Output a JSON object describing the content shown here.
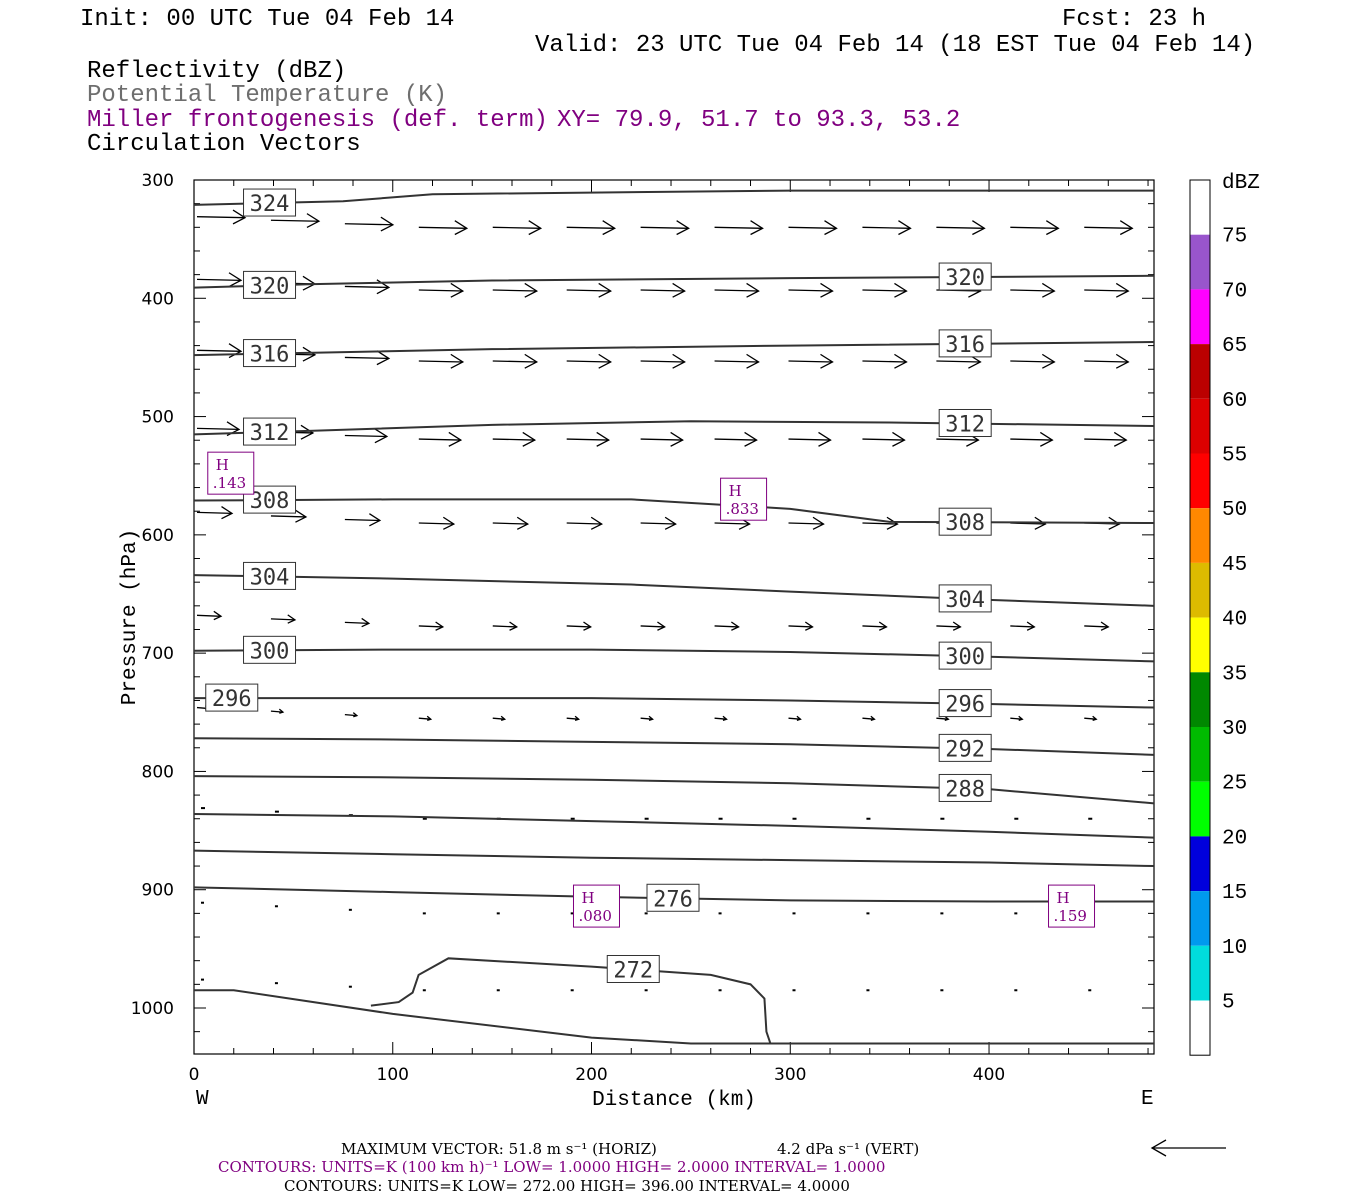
{
  "header": {
    "init": "Init: 00 UTC Tue 04 Feb 14",
    "fcst": "Fcst:   23 h",
    "valid": "Valid: 23 UTC Tue 04 Feb 14 (18 EST Tue 04 Feb 14)",
    "field1": "Reflectivity (dBZ)",
    "field2": "Potential Temperature (K)",
    "field3": "Miller frontogenesis (def. term)",
    "xy": "XY=  79.9, 51.7 to  93.3, 53.2",
    "field4": "Circulation Vectors"
  },
  "colors": {
    "purple": "#800080",
    "grey_text": "#6e6e6e",
    "contour": "#333333"
  },
  "chart_data": {
    "type": "line",
    "xlabel": "Distance (km)",
    "ylabel": "Pressure (hPa)",
    "x_ticks": [
      "0",
      "100",
      "200",
      "300",
      "400"
    ],
    "y_ticks": [
      "300",
      "400",
      "500",
      "600",
      "700",
      "800",
      "900",
      "1000"
    ],
    "xlim": [
      0,
      483
    ],
    "ylim": [
      1030,
      300
    ],
    "west_label": "W",
    "east_label": "E",
    "theta_contours": [
      {
        "label": "324",
        "x": [
          0,
          75,
          120,
          300,
          483
        ],
        "p": [
          321,
          318,
          312,
          309,
          309
        ]
      },
      {
        "label": "320",
        "x": [
          0,
          60,
          150,
          300,
          483
        ],
        "p": [
          391,
          388,
          385,
          383,
          381
        ]
      },
      {
        "label": "316",
        "x": [
          0,
          60,
          150,
          300,
          483
        ],
        "p": [
          448,
          446,
          443,
          440,
          437
        ]
      },
      {
        "label": "312",
        "x": [
          0,
          60,
          150,
          250,
          350,
          483
        ],
        "p": [
          515,
          512,
          507,
          504,
          505,
          508
        ]
      },
      {
        "label": "308",
        "x": [
          0,
          100,
          220,
          300,
          350,
          483
        ],
        "p": [
          571,
          570,
          570,
          578,
          589,
          590
        ]
      },
      {
        "label": "304",
        "x": [
          0,
          100,
          220,
          300,
          400,
          483
        ],
        "p": [
          634,
          637,
          642,
          648,
          655,
          660
        ]
      },
      {
        "label": "300",
        "x": [
          0,
          100,
          200,
          300,
          400,
          483
        ],
        "p": [
          698,
          697,
          697,
          699,
          703,
          707
        ]
      },
      {
        "label": "296",
        "x": [
          0,
          100,
          200,
          300,
          400,
          483
        ],
        "p": [
          738,
          738,
          738,
          740,
          743,
          746
        ]
      },
      {
        "label": "292",
        "x": [
          0,
          100,
          200,
          300,
          400,
          483
        ],
        "p": [
          772,
          773,
          775,
          777,
          781,
          786
        ]
      },
      {
        "label": "288",
        "x": [
          0,
          100,
          200,
          300,
          400,
          483
        ],
        "p": [
          804,
          805,
          807,
          810,
          815,
          827
        ]
      },
      {
        "label": "",
        "x": [
          0,
          100,
          200,
          300,
          400,
          483
        ],
        "p": [
          836,
          838,
          842,
          846,
          851,
          856
        ]
      },
      {
        "label": "",
        "x": [
          0,
          100,
          200,
          300,
          400,
          483
        ],
        "p": [
          867,
          870,
          873,
          875,
          877,
          880
        ]
      },
      {
        "label": "276",
        "x": [
          0,
          100,
          200,
          300,
          400,
          483
        ],
        "p": [
          898,
          902,
          906,
          909,
          910,
          910
        ]
      },
      {
        "label": "272",
        "x": [
          89,
          103,
          110,
          113,
          128,
          200,
          260,
          280,
          287,
          288,
          290
        ],
        "p": [
          998,
          995,
          987,
          972,
          958,
          965,
          972,
          980,
          992,
          1020,
          1030
        ]
      }
    ],
    "ground": {
      "x": [
        0,
        20,
        100,
        200,
        250,
        483
      ],
      "p": [
        985,
        985,
        1005,
        1025,
        1030,
        1030
      ]
    },
    "frontogenesis_maxima": [
      {
        "label": "H",
        "value": ".143",
        "x": 18,
        "p": 547
      },
      {
        "label": "H",
        "value": ".833",
        "x": 276,
        "p": 569
      },
      {
        "label": "H",
        "value": ".080",
        "x": 202,
        "p": 913
      },
      {
        "label": "H",
        "value": ".159",
        "x": 441,
        "p": 913
      }
    ],
    "vector_rows": [
      {
        "p": 340,
        "len": 48
      },
      {
        "p": 393,
        "len": 44
      },
      {
        "p": 453,
        "len": 44
      },
      {
        "p": 519,
        "len": 42
      },
      {
        "p": 590,
        "len": 35
      },
      {
        "p": 677,
        "len": 24
      },
      {
        "p": 755,
        "len": 12
      },
      {
        "p": 840,
        "len": 3
      },
      {
        "p": 920,
        "len": 2
      },
      {
        "p": 985,
        "len": 2
      }
    ]
  },
  "colorbar": {
    "title": "dBZ",
    "labels": [
      "75",
      "70",
      "65",
      "60",
      "55",
      "50",
      "45",
      "40",
      "35",
      "30",
      "25",
      "20",
      "15",
      "10",
      "5"
    ],
    "colors": [
      "#ffffff",
      "#9955cc",
      "#ff00ff",
      "#bb0000",
      "#dd0000",
      "#ff0000",
      "#ff8800",
      "#ddbb00",
      "#ffff00",
      "#008800",
      "#00bb00",
      "#00ff00",
      "#0000dd",
      "#0099ee",
      "#00dddd",
      "#ffffff"
    ]
  },
  "footer": {
    "max_vector": "MAXIMUM VECTOR:  51.8 m s⁻¹ (HORIZ)",
    "max_vector_vert": "4.2 dPa s⁻¹ (VERT)",
    "contours1": "CONTOURS:  UNITS=K (100 km h)⁻¹  LOW=  1.0000       HIGH=  2.0000       INTERVAL=    1.0000",
    "contours2": "CONTOURS:  UNITS=K  LOW=  272.00        HIGH=  396.00        INTERVAL=    4.0000"
  }
}
